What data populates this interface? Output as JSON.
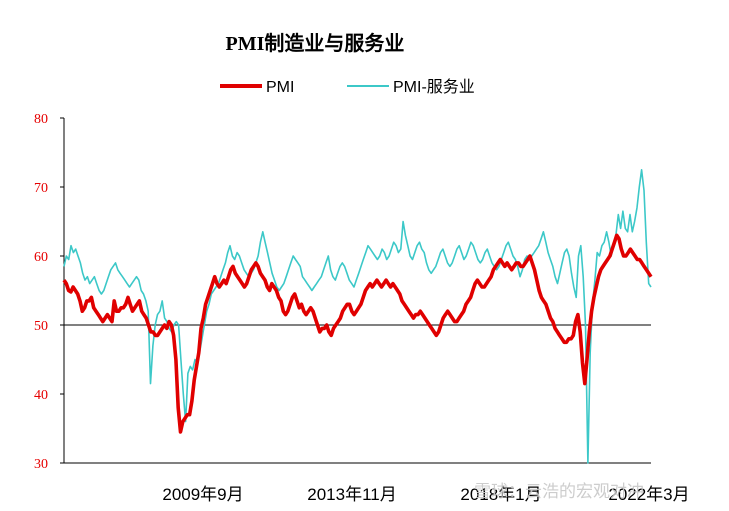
{
  "chart_data": {
    "type": "line",
    "title": "PMI制造业与服务业",
    "ylim": [
      30,
      80
    ],
    "yticks": [
      30,
      40,
      50,
      60,
      70,
      80
    ],
    "reference_line": 50,
    "xtick_labels": [
      "2009年9月",
      "2013年11月",
      "2018年1月",
      "2022年3月"
    ],
    "legend_position": "top-center",
    "grid": false,
    "colors": {
      "pmi": "#e00000",
      "services": "#3cc8c8",
      "ytick": "#e60000"
    },
    "series": [
      {
        "name": "PMI",
        "values": [
          56.5,
          56.0,
          55.0,
          54.8,
          55.5,
          55.0,
          54.5,
          53.5,
          52.0,
          52.5,
          53.5,
          53.5,
          54.0,
          52.5,
          52.0,
          51.5,
          51.0,
          50.5,
          51.0,
          51.5,
          51.0,
          50.5,
          53.5,
          52.0,
          52.0,
          52.5,
          52.5,
          53.0,
          54.0,
          53.0,
          52.0,
          52.5,
          53.0,
          53.5,
          52.0,
          51.5,
          51.0,
          50.0,
          49.0,
          49.0,
          48.5,
          48.5,
          49.0,
          49.5,
          50.0,
          49.5,
          50.5,
          50.0,
          48.5,
          45.0,
          38.0,
          34.5,
          36.0,
          36.5,
          37.0,
          37.0,
          39.0,
          42.0,
          44.0,
          46.0,
          49.5,
          51.0,
          53.0,
          54.0,
          55.0,
          56.0,
          57.0,
          56.0,
          55.5,
          56.0,
          56.5,
          56.0,
          57.0,
          58.0,
          58.5,
          57.5,
          57.0,
          56.5,
          56.0,
          55.5,
          56.0,
          57.0,
          58.0,
          58.5,
          59.0,
          58.5,
          57.5,
          57.0,
          56.5,
          55.5,
          55.0,
          56.0,
          55.5,
          55.0,
          54.0,
          53.5,
          52.0,
          51.5,
          52.0,
          53.0,
          54.0,
          54.5,
          53.5,
          52.5,
          53.0,
          52.0,
          51.5,
          52.0,
          52.5,
          52.0,
          51.0,
          50.0,
          49.0,
          49.5,
          49.5,
          50.0,
          49.0,
          48.5,
          49.5,
          50.0,
          50.5,
          51.0,
          52.0,
          52.5,
          53.0,
          53.0,
          52.0,
          51.5,
          52.0,
          52.5,
          53.0,
          54.0,
          55.0,
          55.5,
          56.0,
          55.5,
          56.0,
          56.5,
          56.0,
          55.5,
          56.0,
          56.5,
          56.0,
          55.5,
          56.0,
          55.5,
          55.0,
          54.5,
          53.5,
          53.0,
          52.5,
          52.0,
          51.5,
          51.0,
          51.5,
          51.5,
          52.0,
          51.5,
          51.0,
          50.5,
          50.0,
          49.5,
          49.0,
          48.5,
          49.0,
          50.0,
          51.0,
          51.5,
          52.0,
          51.5,
          51.0,
          50.5,
          50.5,
          51.0,
          51.5,
          52.0,
          53.0,
          53.5,
          54.0,
          55.0,
          56.0,
          56.5,
          56.0,
          55.5,
          55.5,
          56.0,
          56.5,
          57.0,
          58.0,
          58.5,
          59.0,
          59.5,
          59.0,
          58.5,
          59.0,
          58.5,
          58.0,
          58.5,
          59.0,
          59.0,
          58.5,
          58.5,
          59.0,
          59.5,
          60.0,
          59.0,
          58.0,
          56.5,
          55.0,
          54.0,
          53.5,
          53.0,
          52.0,
          51.0,
          50.5,
          49.5,
          49.0,
          48.5,
          48.0,
          47.5,
          47.5,
          48.0,
          48.0,
          48.5,
          50.5,
          51.5,
          49.0,
          44.5,
          41.5,
          45.0,
          49.0,
          52.0,
          54.0,
          55.5,
          57.0,
          58.0,
          58.5,
          59.0,
          59.5,
          60.0,
          61.0,
          62.0,
          63.0,
          62.5,
          61.0,
          60.0,
          60.0,
          60.5,
          61.0,
          60.5,
          60.0,
          59.5,
          59.5,
          59.0,
          58.5,
          58.0,
          57.5,
          57.0
        ]
      },
      {
        "name": "PMI-服务业",
        "values": [
          58.5,
          60.0,
          59.5,
          61.5,
          60.5,
          61.0,
          60.0,
          59.0,
          57.5,
          56.5,
          57.0,
          56.0,
          56.5,
          57.0,
          56.0,
          55.0,
          54.5,
          55.0,
          56.0,
          57.0,
          58.0,
          58.5,
          59.0,
          58.0,
          57.5,
          57.0,
          56.5,
          56.0,
          55.5,
          56.0,
          56.5,
          57.0,
          56.5,
          55.0,
          54.5,
          53.5,
          52.0,
          41.5,
          47.0,
          50.0,
          51.5,
          52.0,
          53.5,
          51.0,
          50.5,
          49.5,
          49.0,
          50.0,
          50.5,
          50.0,
          45.0,
          40.0,
          36.0,
          43.0,
          44.0,
          43.5,
          45.0,
          44.5,
          46.0,
          48.0,
          50.0,
          52.0,
          53.0,
          54.5,
          55.0,
          55.5,
          56.0,
          57.0,
          58.0,
          59.0,
          60.5,
          61.5,
          60.0,
          59.5,
          60.5,
          60.0,
          59.0,
          58.0,
          57.5,
          57.0,
          57.5,
          58.0,
          59.0,
          60.0,
          62.0,
          63.5,
          62.0,
          60.5,
          59.0,
          57.5,
          56.5,
          55.5,
          55.0,
          55.5,
          56.0,
          57.0,
          58.0,
          59.0,
          60.0,
          59.5,
          59.0,
          58.5,
          57.0,
          56.5,
          56.0,
          55.5,
          55.0,
          55.5,
          56.0,
          56.5,
          57.0,
          58.0,
          59.0,
          60.0,
          58.0,
          57.0,
          56.5,
          57.5,
          58.5,
          59.0,
          58.5,
          57.5,
          56.5,
          56.0,
          55.5,
          56.5,
          57.5,
          58.5,
          59.5,
          60.5,
          61.5,
          61.0,
          60.5,
          60.0,
          59.5,
          60.0,
          61.0,
          60.5,
          59.5,
          60.0,
          61.0,
          62.0,
          61.5,
          60.5,
          61.0,
          65.0,
          63.0,
          61.5,
          60.0,
          59.5,
          60.5,
          61.5,
          62.0,
          61.0,
          60.5,
          59.0,
          58.0,
          57.5,
          58.0,
          58.5,
          59.5,
          60.5,
          61.0,
          60.0,
          59.0,
          58.5,
          59.0,
          60.0,
          61.0,
          61.5,
          60.5,
          59.5,
          60.0,
          61.0,
          62.0,
          61.5,
          60.5,
          59.5,
          59.0,
          59.5,
          60.5,
          61.0,
          60.0,
          59.0,
          58.5,
          58.0,
          58.5,
          59.5,
          60.5,
          61.5,
          62.0,
          61.0,
          60.0,
          59.5,
          58.5,
          57.0,
          58.0,
          59.5,
          60.0,
          59.5,
          60.0,
          60.5,
          61.0,
          61.5,
          62.5,
          63.5,
          62.0,
          60.5,
          59.5,
          58.5,
          57.0,
          56.0,
          57.5,
          59.0,
          60.5,
          61.0,
          60.0,
          57.5,
          55.5,
          54.0,
          60.0,
          61.5,
          57.0,
          50.0,
          30.0,
          46.0,
          53.0,
          56.5,
          60.5,
          60.0,
          61.5,
          62.0,
          63.5,
          62.0,
          60.0,
          61.5,
          63.0,
          66.0,
          64.0,
          66.5,
          64.0,
          63.5,
          66.0,
          63.5,
          65.0,
          67.0,
          70.0,
          72.5,
          69.5,
          62.0,
          56.0,
          55.5
        ]
      }
    ]
  },
  "watermark": "雪球：云浩的宏观对冲"
}
